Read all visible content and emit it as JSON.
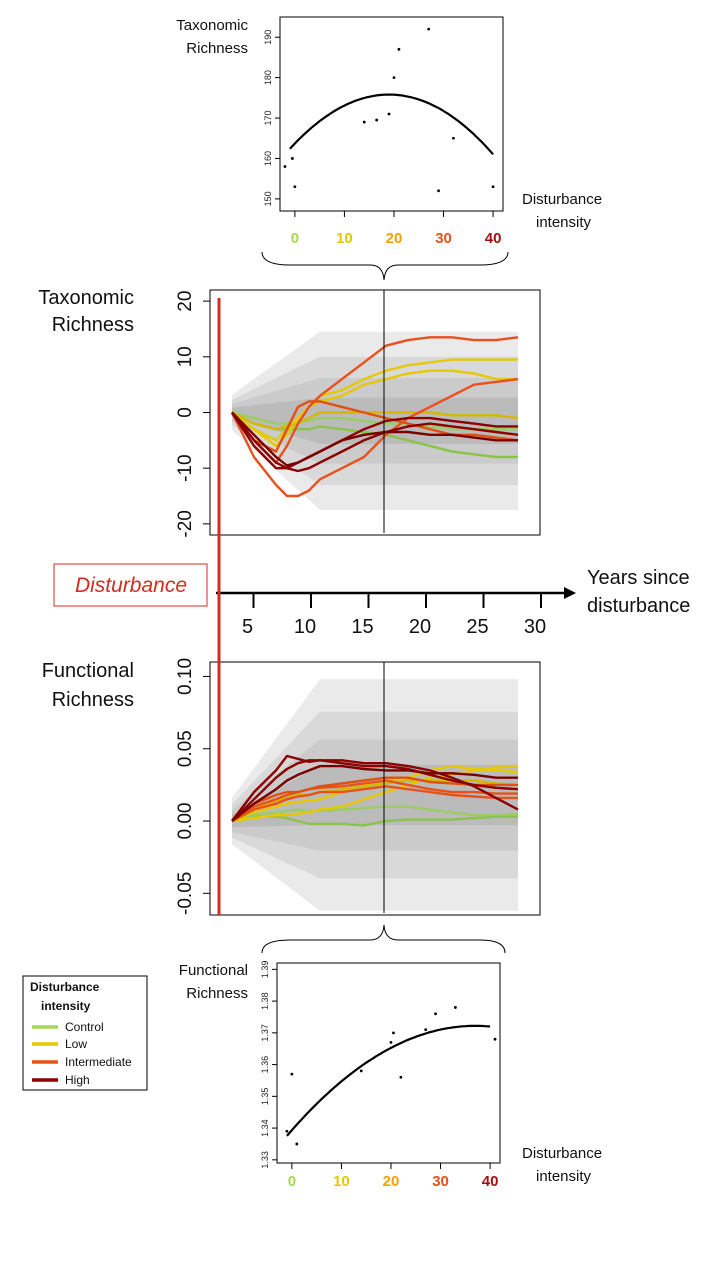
{
  "top_scatter": {
    "ylabel": [
      "Taxonomic",
      "Richness"
    ],
    "xlabel": [
      "Disturbance",
      "intensity"
    ],
    "x_ticks": [
      "0",
      "10",
      "20",
      "30",
      "40"
    ],
    "x_tick_colors": [
      "#a6d854",
      "#e6c800",
      "#f5a000",
      "#e8501c",
      "#a50f0f"
    ],
    "y_ticks": [
      150,
      160,
      170,
      180,
      190
    ],
    "ylim": [
      147,
      195
    ],
    "xlim": [
      -3,
      42
    ],
    "points": [
      [
        -2,
        158
      ],
      [
        -0.5,
        160
      ],
      [
        0,
        153
      ],
      [
        14,
        169
      ],
      [
        16.5,
        169.5
      ],
      [
        19,
        171
      ],
      [
        20,
        180
      ],
      [
        21,
        187
      ],
      [
        27,
        192
      ],
      [
        29,
        152
      ],
      [
        32,
        165
      ],
      [
        40,
        153
      ]
    ],
    "curve": {
      "a": 175.8,
      "b": 0.0335,
      "c": 19
    }
  },
  "bottom_scatter": {
    "ylabel": [
      "Functional",
      "Richness"
    ],
    "xlabel": [
      "Disturbance",
      "intensity"
    ],
    "x_ticks": [
      "0",
      "10",
      "20",
      "30",
      "40"
    ],
    "x_tick_colors": [
      "#a6d854",
      "#e6c800",
      "#f5a000",
      "#e8501c",
      "#a50f0f"
    ],
    "y_ticks": [
      1.33,
      1.34,
      1.35,
      1.36,
      1.37,
      1.38,
      1.39
    ],
    "ylim": [
      1.329,
      1.392
    ],
    "xlim": [
      -3,
      42
    ],
    "points": [
      [
        -1,
        1.339
      ],
      [
        0,
        1.357
      ],
      [
        1,
        1.335
      ],
      [
        14,
        1.358
      ],
      [
        20,
        1.367
      ],
      [
        20.5,
        1.37
      ],
      [
        22,
        1.356
      ],
      [
        27,
        1.371
      ],
      [
        29,
        1.376
      ],
      [
        33,
        1.378
      ],
      [
        41,
        1.368
      ]
    ],
    "curve": {
      "a": 1.3722,
      "b": 2.4e-05,
      "c": 37
    }
  },
  "taxonomic_panel": {
    "ylabel": [
      "Taxonomic",
      "Richness"
    ],
    "y_ticks": [
      -20,
      -10,
      0,
      10,
      20
    ],
    "ylim": [
      -22,
      22
    ],
    "xlim": [
      0,
      30
    ]
  },
  "functional_panel": {
    "ylabel": [
      "Functional",
      "Richness"
    ],
    "y_ticks": [
      "-0.05",
      "0.00",
      "0.05",
      "0.10"
    ],
    "ylim": [
      -0.065,
      0.11
    ],
    "xlim": [
      0,
      30
    ]
  },
  "timeline": {
    "disturbance_label": "Disturbance",
    "axis_label": [
      "Years since",
      "disturbance"
    ],
    "ticks": [
      5,
      10,
      15,
      20,
      25,
      30
    ]
  },
  "legend": {
    "title": [
      "Disturbance",
      "intensity"
    ],
    "items": [
      {
        "label": "Control",
        "color": "#a6d854"
      },
      {
        "label": "Low",
        "color": "#e6c800"
      },
      {
        "label": "Intermediate",
        "color": "#e8501c"
      },
      {
        "label": "High",
        "color": "#8b0000"
      }
    ]
  },
  "chart_data": [
    {
      "type": "scatter",
      "xlabel": "Disturbance intensity",
      "ylabel": "Taxonomic Richness",
      "xlim": [
        -3,
        42
      ],
      "ylim": [
        147,
        195
      ],
      "x": [
        -2,
        -0.5,
        0,
        14,
        16.5,
        19,
        20,
        21,
        27,
        29,
        32,
        40
      ],
      "y": [
        158,
        160,
        153,
        169,
        169.5,
        171,
        180,
        187,
        192,
        152,
        165,
        153
      ]
    },
    {
      "type": "line",
      "xlabel": "Years since disturbance",
      "ylabel": "Taxonomic Richness",
      "xlim": [
        0,
        30
      ],
      "ylim": [
        -22,
        22
      ],
      "x": [
        2,
        4,
        6,
        7,
        8,
        9,
        10,
        12,
        14,
        16,
        18,
        20,
        22,
        24,
        26,
        28
      ],
      "series": [
        {
          "name": "Control",
          "color": "#8bc34a",
          "values": [
            0,
            -2,
            -3,
            -3,
            -3,
            -3,
            -2.5,
            -3,
            -3.5,
            -4,
            -5,
            -6,
            -7,
            -7.5,
            -8,
            -8
          ]
        },
        {
          "name": "Control",
          "color": "#9ccc65",
          "values": [
            0,
            -1,
            -2,
            -2,
            -1.5,
            -1.5,
            -1,
            -1,
            -1.5,
            -2,
            -2,
            -2.5,
            -3,
            -3,
            -3,
            -3
          ]
        },
        {
          "name": "Low",
          "color": "#e6c800",
          "values": [
            0,
            -3,
            -6,
            -4,
            -1,
            1,
            3,
            4,
            6,
            7.5,
            8.5,
            9,
            9.5,
            9.5,
            9.5,
            9.5
          ]
        },
        {
          "name": "Low",
          "color": "#e6c800",
          "values": [
            0,
            -3,
            -5,
            -3,
            -1,
            1,
            2,
            3,
            5,
            6,
            7,
            7.5,
            7.5,
            7,
            6,
            6
          ]
        },
        {
          "name": "Low",
          "color": "#d4b800",
          "values": [
            0,
            -2,
            -3,
            -2.5,
            -2,
            -1,
            0,
            0,
            0,
            0,
            0,
            0,
            -0.5,
            -0.5,
            -0.5,
            -1
          ]
        },
        {
          "name": "Intermediate",
          "color": "#e8501c",
          "values": [
            0,
            -5,
            -9,
            -6,
            -2,
            1,
            3,
            6,
            9,
            12,
            13,
            13.5,
            13.5,
            13,
            13,
            13.5
          ]
        },
        {
          "name": "Intermediate",
          "color": "#e8501c",
          "values": [
            0,
            -8,
            -13,
            -15,
            -15,
            -14,
            -12,
            -10,
            -8,
            -4,
            -1,
            1,
            3,
            5,
            5.5,
            6
          ]
        },
        {
          "name": "Intermediate",
          "color": "#e05010",
          "values": [
            0,
            -5,
            -7,
            -3,
            1,
            2,
            2,
            1,
            0,
            -1,
            -2,
            -3,
            -4,
            -4,
            -4.5,
            -5
          ]
        },
        {
          "name": "High",
          "color": "#8b0000",
          "values": [
            0,
            -6,
            -10,
            -10,
            -9,
            -8,
            -7,
            -5,
            -3,
            -1.5,
            -1,
            -1,
            -1.5,
            -2,
            -2.5,
            -2.5
          ]
        },
        {
          "name": "High",
          "color": "#8b0000",
          "values": [
            0,
            -5,
            -9,
            -10,
            -10.5,
            -10,
            -9,
            -7,
            -5,
            -3.5,
            -2.5,
            -2,
            -2.5,
            -3,
            -3.5,
            -4
          ]
        },
        {
          "name": "High",
          "color": "#7a0000",
          "values": [
            0,
            -4,
            -8,
            -9.5,
            -9,
            -8,
            -7,
            -5,
            -4,
            -3.5,
            -3.5,
            -4,
            -4,
            -4.5,
            -5,
            -5
          ]
        }
      ]
    },
    {
      "type": "line",
      "xlabel": "Years since disturbance",
      "ylabel": "Functional Richness",
      "xlim": [
        0,
        30
      ],
      "ylim": [
        -0.065,
        0.11
      ],
      "x": [
        2,
        4,
        6,
        7,
        8,
        9,
        10,
        12,
        14,
        16,
        18,
        20,
        22,
        24,
        26,
        28
      ],
      "series": [
        {
          "name": "Control",
          "color": "#8bc34a",
          "values": [
            0,
            0.003,
            0.003,
            0.002,
            0,
            -0.002,
            -0.002,
            -0.002,
            -0.003,
            0,
            0.001,
            0.001,
            0.001,
            0.002,
            0.003,
            0.003
          ]
        },
        {
          "name": "Control",
          "color": "#9ccc65",
          "values": [
            0,
            0.004,
            0.006,
            0.007,
            0.008,
            0.007,
            0.007,
            0.008,
            0.009,
            0.01,
            0.01,
            0.008,
            0.006,
            0.004,
            0.004,
            0.005
          ]
        },
        {
          "name": "Low",
          "color": "#e6c800",
          "values": [
            0,
            0.006,
            0.01,
            0.012,
            0.013,
            0.014,
            0.015,
            0.02,
            0.025,
            0.028,
            0.03,
            0.035,
            0.038,
            0.036,
            0.035,
            0.034
          ]
        },
        {
          "name": "Low",
          "color": "#e6c800",
          "values": [
            0,
            0.002,
            0.004,
            0.004,
            0.005,
            0.006,
            0.008,
            0.01,
            0.015,
            0.02,
            0.025,
            0.03,
            0.032,
            0.035,
            0.037,
            0.038
          ]
        },
        {
          "name": "Low",
          "color": "#d4b800",
          "values": [
            0,
            0.008,
            0.014,
            0.016,
            0.018,
            0.018,
            0.02,
            0.022,
            0.024,
            0.026,
            0.028,
            0.028,
            0.028,
            0.028,
            0.026,
            0.025
          ]
        },
        {
          "name": "Intermediate",
          "color": "#e8501c",
          "values": [
            0,
            0.01,
            0.015,
            0.018,
            0.02,
            0.022,
            0.023,
            0.024,
            0.026,
            0.028,
            0.025,
            0.022,
            0.02,
            0.02,
            0.019,
            0.019
          ]
        },
        {
          "name": "Intermediate",
          "color": "#e8501c",
          "values": [
            0,
            0.008,
            0.012,
            0.015,
            0.017,
            0.018,
            0.02,
            0.02,
            0.022,
            0.024,
            0.022,
            0.02,
            0.018,
            0.017,
            0.016,
            0.016
          ]
        },
        {
          "name": "Intermediate",
          "color": "#e05010",
          "values": [
            0,
            0.012,
            0.018,
            0.02,
            0.02,
            0.022,
            0.024,
            0.026,
            0.028,
            0.03,
            0.03,
            0.027,
            0.026,
            0.025,
            0.025,
            0.025
          ]
        },
        {
          "name": "High",
          "color": "#8b0000",
          "values": [
            0,
            0.02,
            0.035,
            0.045,
            0.043,
            0.041,
            0.042,
            0.04,
            0.038,
            0.038,
            0.036,
            0.032,
            0.028,
            0.025,
            0.023,
            0.022
          ]
        },
        {
          "name": "High",
          "color": "#8b0000",
          "values": [
            0,
            0.015,
            0.03,
            0.036,
            0.04,
            0.042,
            0.042,
            0.042,
            0.04,
            0.04,
            0.038,
            0.035,
            0.03,
            0.024,
            0.016,
            0.008
          ]
        },
        {
          "name": "High",
          "color": "#7a0000",
          "values": [
            0,
            0.012,
            0.022,
            0.028,
            0.032,
            0.035,
            0.038,
            0.038,
            0.036,
            0.035,
            0.035,
            0.033,
            0.033,
            0.032,
            0.03,
            0.03
          ]
        }
      ]
    },
    {
      "type": "scatter",
      "xlabel": "Disturbance intensity",
      "ylabel": "Functional Richness",
      "xlim": [
        -3,
        42
      ],
      "ylim": [
        1.329,
        1.392
      ],
      "x": [
        -1,
        0,
        1,
        14,
        20,
        20.5,
        22,
        27,
        29,
        33,
        41
      ],
      "y": [
        1.339,
        1.357,
        1.335,
        1.358,
        1.367,
        1.37,
        1.356,
        1.371,
        1.376,
        1.378,
        1.368
      ]
    }
  ]
}
